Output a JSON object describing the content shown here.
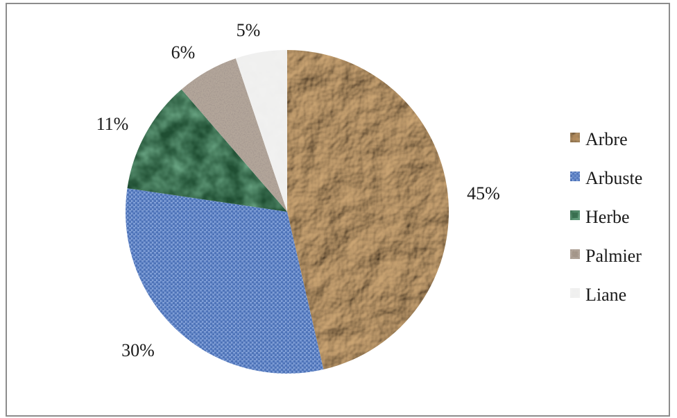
{
  "chart_data": {
    "type": "pie",
    "categories": [
      "Arbre",
      "Arbuste",
      "Herbe",
      "Palmier",
      "Liane"
    ],
    "values": [
      45,
      30,
      11,
      6,
      5
    ],
    "data_labels": [
      "45%",
      "30%",
      "11%",
      "6%",
      "5%"
    ],
    "legend": {
      "placement": "right",
      "entries": [
        "Arbre",
        "Arbuste",
        "Herbe",
        "Palmier",
        "Liane"
      ]
    },
    "colors": [
      "#b5895a",
      "#5f84c7",
      "#24593a",
      "#9a8c80",
      "#eeeeee"
    ],
    "textures": [
      "crumpled-paper",
      "woven-fabric",
      "green-marble",
      "granite",
      "white-paper"
    ],
    "start_angle": "12 o'clock",
    "direction": "clockwise"
  }
}
